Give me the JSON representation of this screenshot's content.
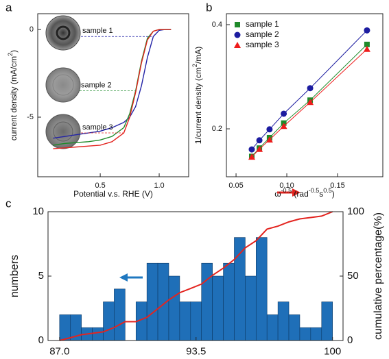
{
  "chart_data": [
    {
      "panel_label": "a",
      "type": "line",
      "xlabel": "Potential v.s. RHE (V)",
      "ylabel": [
        {
          "text": "current density (mA/cm"
        },
        {
          "sup": "2"
        },
        {
          "text": ")"
        }
      ],
      "x": [
        0.1,
        0.2,
        0.3,
        0.4,
        0.5,
        0.6,
        0.7,
        0.75,
        0.8,
        0.85,
        0.9,
        0.95,
        1.0,
        1.05,
        1.1
      ],
      "series": [
        {
          "name": "sample 1",
          "color": "#2323a6",
          "values": [
            -6.2,
            -6.1,
            -6.0,
            -5.9,
            -5.8,
            -5.6,
            -5.3,
            -5.0,
            -4.4,
            -3.2,
            -1.6,
            -0.4,
            -0.05,
            0,
            0
          ]
        },
        {
          "name": "sample 2",
          "color": "#1f8a2a",
          "values": [
            -6.6,
            -6.5,
            -6.45,
            -6.4,
            -6.3,
            -6.1,
            -5.6,
            -4.8,
            -3.5,
            -1.8,
            -0.5,
            -0.1,
            0,
            0,
            0
          ]
        },
        {
          "name": "sample 3",
          "color": "#e3241f",
          "values": [
            -6.8,
            -6.75,
            -6.7,
            -6.65,
            -6.6,
            -6.4,
            -5.9,
            -5.0,
            -3.6,
            -1.9,
            -0.6,
            -0.1,
            0,
            0,
            0
          ]
        }
      ],
      "xlim": [
        -0.03,
        1.25
      ],
      "xticks": [
        0.5,
        {
          "value": 1,
          "label": "1.0"
        }
      ],
      "ylim": [
        -8.4,
        0.9
      ],
      "yticks": [
        0,
        -5
      ]
    },
    {
      "panel_label": "b",
      "type": "scatter",
      "xlabel": [
        {
          "text": "ω"
        },
        {
          "sup": "-0.5"
        },
        {
          "text": " (rad"
        },
        {
          "sup": "-0.5"
        },
        {
          "text": "s"
        },
        {
          "sup": "0.5"
        },
        {
          "text": ")"
        }
      ],
      "ylabel": [
        {
          "text": "1/current density (cm"
        },
        {
          "sup": "2"
        },
        {
          "text": "/mA)"
        }
      ],
      "x": [
        0.0655,
        0.073,
        0.083,
        0.097,
        0.123,
        0.179
      ],
      "series": [
        {
          "name": "sample 1",
          "color": "#1f8a2a",
          "marker": "square",
          "values": [
            0.147,
            0.163,
            0.183,
            0.211,
            0.255,
            0.362
          ]
        },
        {
          "name": "sample 2",
          "color": "#1c1ca0",
          "marker": "circle",
          "values": [
            0.1605,
            0.178,
            0.199,
            0.229,
            0.278,
            0.389
          ]
        },
        {
          "name": "sample 3",
          "color": "#ee1c1c",
          "marker": "triangle",
          "values": [
            0.146,
            0.161,
            0.179,
            0.205,
            0.251,
            0.353
          ]
        }
      ],
      "legend": "upper left",
      "xlim": [
        0.0405,
        0.1946
      ],
      "xticks": [
        0.05,
        {
          "value": 0.1,
          "label": "0.10"
        },
        0.15
      ],
      "ylim": [
        0.108,
        0.421
      ],
      "yticks": [
        0.2,
        0.4
      ]
    },
    {
      "panel_label": "c",
      "type": "histogram",
      "ylabel": "numbers",
      "y2label": "cumulative percentage(%)",
      "bins": [
        87,
        87.52,
        88.04,
        88.56,
        89.08,
        89.6,
        90.12,
        90.64,
        91.16,
        91.68,
        92.2,
        92.72,
        93.24,
        93.76,
        94.28,
        94.8,
        95.32,
        95.84,
        96.36,
        96.88,
        97.4,
        97.92,
        98.44,
        98.96,
        99.48,
        100
      ],
      "counts": [
        2,
        2,
        1,
        1,
        3,
        4,
        0,
        3,
        6,
        6,
        5,
        3,
        3,
        6,
        5,
        6,
        8,
        5,
        8,
        2,
        3,
        2,
        1,
        1,
        3
      ],
      "color": "#1f6fb8",
      "line": {
        "color": "#e3241f",
        "axis": "y2",
        "x": [
          87,
          87.52,
          88.04,
          88.56,
          89.08,
          89.6,
          90.12,
          90.64,
          91.16,
          91.68,
          92.2,
          92.72,
          93.24,
          93.76,
          94.28,
          94.8,
          95.32,
          95.84,
          96.36,
          96.88,
          97.4,
          97.92,
          98.44,
          98.96,
          99.48,
          100
        ],
        "values": [
          0,
          2.2,
          4.5,
          5.6,
          6.7,
          10.1,
          14.6,
          14.6,
          18.0,
          24.7,
          31.5,
          37.1,
          40.4,
          43.8,
          50.6,
          56.2,
          62.9,
          71.9,
          77.5,
          86.5,
          88.8,
          92.1,
          94.4,
          95.5,
          96.6,
          100
        ]
      },
      "xlim": [
        86.45,
        100.5
      ],
      "xticks": [
        {
          "value": 87,
          "label": "87.0"
        },
        93.5,
        100
      ],
      "ylim": [
        0,
        10
      ],
      "yticks": [
        0,
        5,
        10
      ],
      "y2lim": [
        0,
        100
      ],
      "y2ticks": [
        0,
        50,
        100
      ]
    }
  ]
}
